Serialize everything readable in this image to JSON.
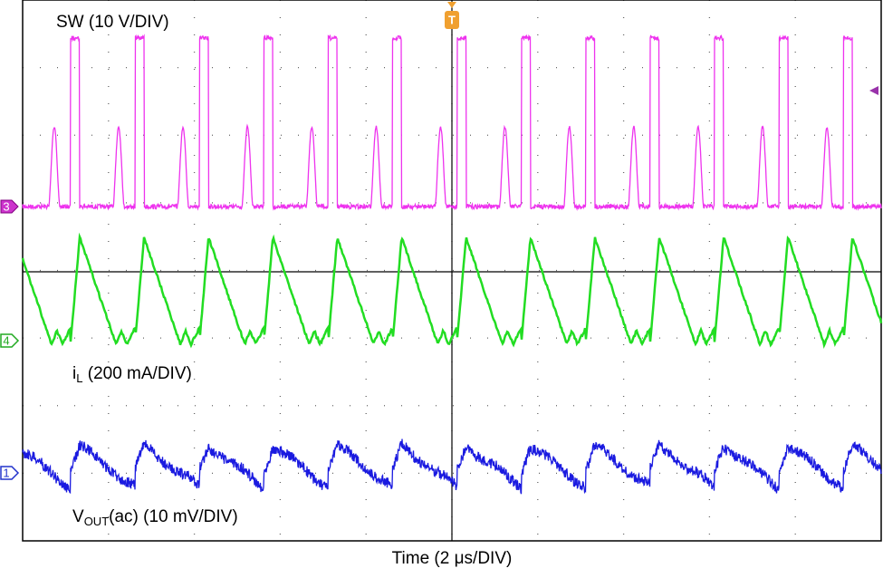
{
  "channels": {
    "sw": {
      "label": "SW (10 V/DIV)",
      "marker": "3"
    },
    "il": {
      "main": "i",
      "sub": "L",
      "rest": " (200 mA/DIV)",
      "marker": "4"
    },
    "vout": {
      "main": "V",
      "sub": "OUT",
      "rest": "(ac) (10 mV/DIV)",
      "marker": "1"
    }
  },
  "trigger": "T",
  "x_axis_label": "Time (2 μs/DIV)"
}
